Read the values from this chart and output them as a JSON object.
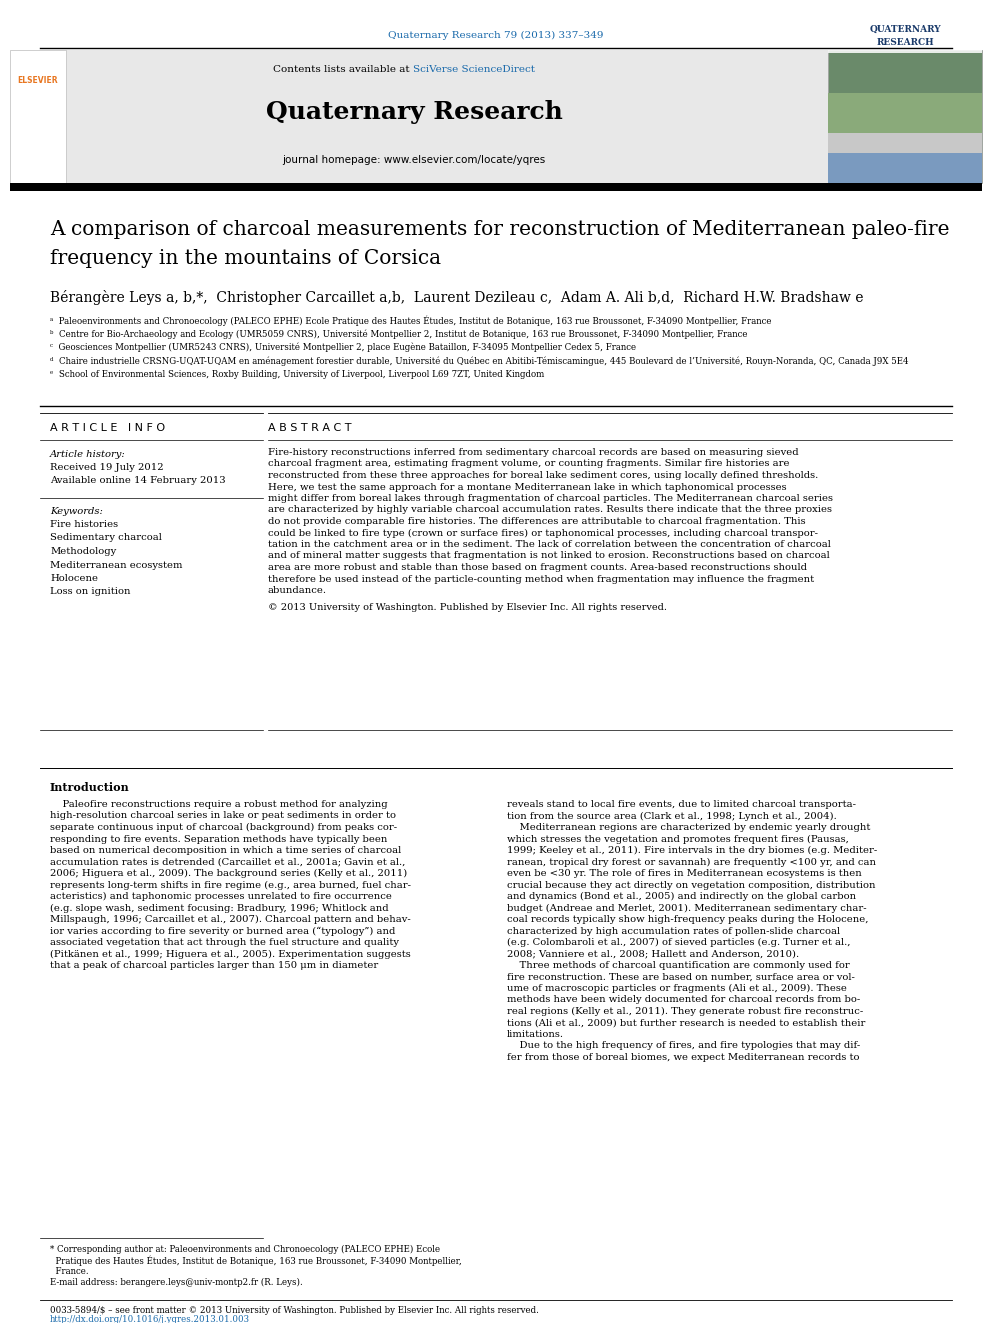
{
  "journal_ref": "Quaternary Research 79 (2013) 337–349",
  "link_color": "#1a6aab",
  "sciverse_text": "SciVerse ScienceDirect",
  "journal_name": "Quaternary Research",
  "journal_homepage": "journal homepage: www.elsevier.com/locate/yqres",
  "article_title_line1": "A comparison of charcoal measurements for reconstruction of Mediterranean paleo-fire",
  "article_title_line2": "frequency in the mountains of Corsica",
  "authors_line": "Bérangère Leys a, b,*,  Christopher Carcaillet a,b,  Laurent Dezileau c,  Adam A. Ali b,d,  Richard H.W. Bradshaw e",
  "affil_a": "ᵃ  Paleoenvironments and Chronoecology (PALECO EPHE) Ecole Pratique des Hautes Études, Institut de Botanique, 163 rue Broussonet, F-34090 Montpellier, France",
  "affil_b": "ᵇ  Centre for Bio-Archaeology and Ecology (UMR5059 CNRS), Université Montpellier 2, Institut de Botanique, 163 rue Broussonet, F-34090 Montpellier, France",
  "affil_c": "ᶜ  Geosciences Montpellier (UMR5243 CNRS), Université Montpellier 2, place Eugène Bataillon, F-34095 Montpellier Cedex 5, France",
  "affil_d": "ᵈ  Chaire industrielle CRSNG-UQAT-UQAM en aménagement forestier durable, Université du Québec en Abitibi-Témiscamingue, 445 Boulevard de l’Université, Rouyn-Noranda, QC, Canada J9X 5E4",
  "affil_e": "ᵉ  School of Environmental Sciences, Roxby Building, University of Liverpool, Liverpool L69 7ZT, United Kingdom",
  "article_info_header": "A R T I C L E   I N F O",
  "history_label": "Article history:",
  "received": "Received 19 July 2012",
  "available": "Available online 14 February 2013",
  "keywords_label": "Keywords:",
  "keywords": [
    "Fire histories",
    "Sedimentary charcoal",
    "Methodology",
    "Mediterranean ecosystem",
    "Holocene",
    "Loss on ignition"
  ],
  "abstract_header": "A B S T R A C T",
  "abstract_lines": [
    "Fire-history reconstructions inferred from sedimentary charcoal records are based on measuring sieved",
    "charcoal fragment area, estimating fragment volume, or counting fragments. Similar fire histories are",
    "reconstructed from these three approaches for boreal lake sediment cores, using locally defined thresholds.",
    "Here, we test the same approach for a montane Mediterranean lake in which taphonomical processes",
    "might differ from boreal lakes through fragmentation of charcoal particles. The Mediterranean charcoal series",
    "are characterized by highly variable charcoal accumulation rates. Results there indicate that the three proxies",
    "do not provide comparable fire histories. The differences are attributable to charcoal fragmentation. This",
    "could be linked to fire type (crown or surface fires) or taphonomical processes, including charcoal transpor-",
    "tation in the catchment area or in the sediment. The lack of correlation between the concentration of charcoal",
    "and of mineral matter suggests that fragmentation is not linked to erosion. Reconstructions based on charcoal",
    "area are more robust and stable than those based on fragment counts. Area-based reconstructions should",
    "therefore be used instead of the particle-counting method when fragmentation may influence the fragment",
    "abundance."
  ],
  "copyright": "© 2013 University of Washington. Published by Elsevier Inc. All rights reserved.",
  "intro_header": "Introduction",
  "intro_col1_lines": [
    "    Paleofire reconstructions require a robust method for analyzing",
    "high-resolution charcoal series in lake or peat sediments in order to",
    "separate continuous input of charcoal (background) from peaks cor-",
    "responding to fire events. Separation methods have typically been",
    "based on numerical decomposition in which a time series of charcoal",
    "accumulation rates is detrended (Carcaillet et al., 2001a; Gavin et al.,",
    "2006; Higuera et al., 2009). The background series (Kelly et al., 2011)",
    "represents long-term shifts in fire regime (e.g., area burned, fuel char-",
    "acteristics) and taphonomic processes unrelated to fire occurrence",
    "(e.g. slope wash, sediment focusing: Bradbury, 1996; Whitlock and",
    "Millspaugh, 1996; Carcaillet et al., 2007). Charcoal pattern and behav-",
    "ior varies according to fire severity or burned area (“typology”) and",
    "associated vegetation that act through the fuel structure and quality",
    "(Pitkänen et al., 1999; Higuera et al., 2005). Experimentation suggests",
    "that a peak of charcoal particles larger than 150 μm in diameter"
  ],
  "intro_col2_lines": [
    "reveals stand to local fire events, due to limited charcoal transporta-",
    "tion from the source area (Clark et al., 1998; Lynch et al., 2004).",
    "    Mediterranean regions are characterized by endemic yearly drought",
    "which stresses the vegetation and promotes frequent fires (Pausas,",
    "1999; Keeley et al., 2011). Fire intervals in the dry biomes (e.g. Mediter-",
    "ranean, tropical dry forest or savannah) are frequently <100 yr, and can",
    "even be <30 yr. The role of fires in Mediterranean ecosystems is then",
    "crucial because they act directly on vegetation composition, distribution",
    "and dynamics (Bond et al., 2005) and indirectly on the global carbon",
    "budget (Andreae and Merlet, 2001). Mediterranean sedimentary char-",
    "coal records typically show high-frequency peaks during the Holocene,",
    "characterized by high accumulation rates of pollen-slide charcoal",
    "(e.g. Colombaroli et al., 2007) of sieved particles (e.g. Turner et al.,",
    "2008; Vanniere et al., 2008; Hallett and Anderson, 2010).",
    "    Three methods of charcoal quantification are commonly used for",
    "fire reconstruction. These are based on number, surface area or vol-",
    "ume of macroscopic particles or fragments (Ali et al., 2009). These",
    "methods have been widely documented for charcoal records from bo-",
    "real regions (Kelly et al., 2011). They generate robust fire reconstruc-",
    "tions (Ali et al., 2009) but further research is needed to establish their",
    "limitations.",
    "    Due to the high frequency of fires, and fire typologies that may dif-",
    "fer from those of boreal biomes, we expect Mediterranean records to"
  ],
  "footnote1": "* Corresponding author at: Paleoenvironments and Chronoecology (PALECO EPHE) Ecole",
  "footnote1b": "  Pratique des Hautes Études, Institut de Botanique, 163 rue Broussonet, F-34090 Montpellier,",
  "footnote1c": "  France.",
  "footnote2": "E-mail address: berangere.leys@univ-montp2.fr (R. Leys).",
  "footer1": "0033-5894/$ – see front matter © 2013 University of Washington. Published by Elsevier Inc. All rights reserved.",
  "footer2": "http://dx.doi.org/10.1016/j.yqres.2013.01.003",
  "bg_gray": "#e8e8e8",
  "bg_white": "#ffffff",
  "elsevier_orange": "#e87722"
}
